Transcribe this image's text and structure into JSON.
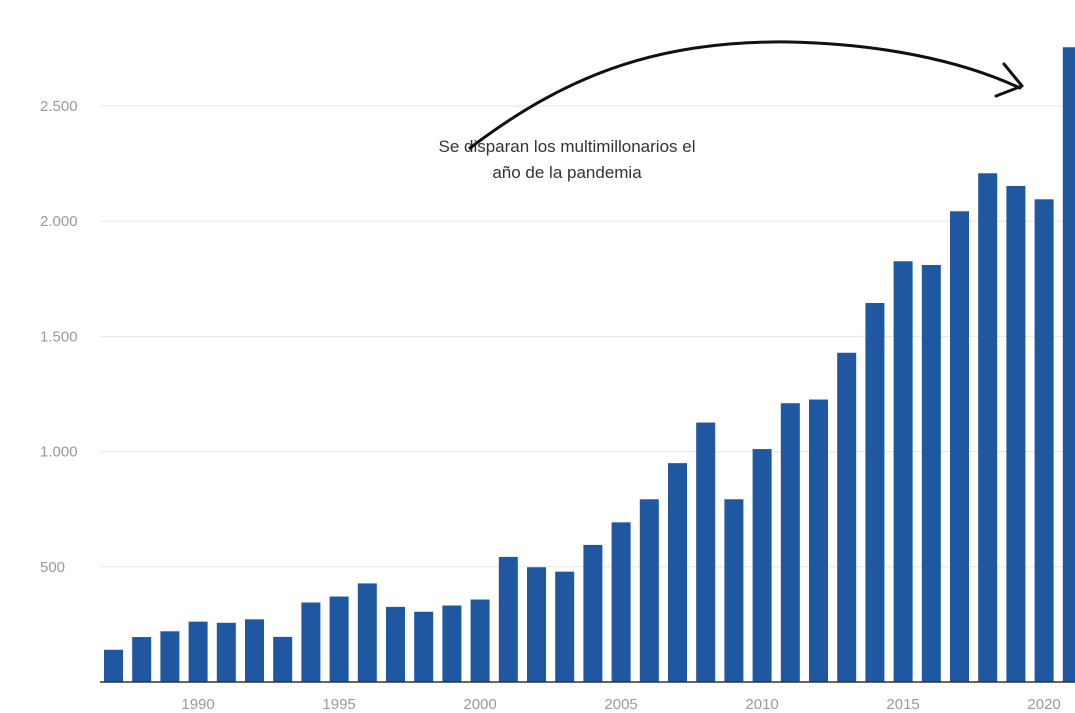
{
  "chart_data": {
    "type": "bar",
    "title": "",
    "xlabel": "",
    "ylabel": "",
    "x": [
      1987,
      1988,
      1989,
      1990,
      1991,
      1992,
      1993,
      1994,
      1995,
      1996,
      1997,
      1998,
      1999,
      2000,
      2001,
      2002,
      2003,
      2004,
      2005,
      2006,
      2007,
      2008,
      2009,
      2010,
      2011,
      2012,
      2013,
      2014,
      2015,
      2016,
      2017,
      2018,
      2019,
      2020,
      2021
    ],
    "values": [
      140,
      195,
      220,
      262,
      257,
      272,
      196,
      345,
      371,
      428,
      326,
      305,
      332,
      358,
      543,
      498,
      479,
      595,
      693,
      793,
      950,
      1126,
      793,
      1011,
      1210,
      1226,
      1429,
      1645,
      1826,
      1810,
      2043,
      2208,
      2153,
      2095,
      2755
    ],
    "ylim": [
      0,
      2800
    ],
    "yticks": [
      500,
      1000,
      1500,
      2000,
      2500
    ],
    "ytick_labels": [
      "500",
      "1.000",
      "1.500",
      "2.000",
      "2.500"
    ],
    "xticks": [
      1990,
      1995,
      2000,
      2005,
      2010,
      2015,
      2020
    ],
    "xtick_labels": [
      "1990",
      "1995",
      "2000",
      "2005",
      "2010",
      "2015",
      "2020"
    ],
    "grid": true,
    "bar_color": "#1f57a0",
    "annotation": {
      "lines": [
        "Se disparan los multimillonarios el",
        "año de la pandemia"
      ]
    }
  }
}
